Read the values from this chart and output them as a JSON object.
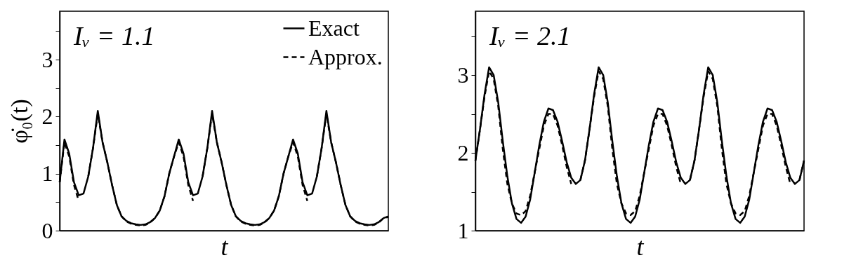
{
  "chart_data": [
    {
      "type": "line",
      "ylabel": "φ̇₀(t)",
      "xlabel": "t",
      "annotations": [
        "Iᵥ = 1.1"
      ],
      "categories": [
        null,
        null,
        null,
        null,
        null,
        null,
        null,
        null,
        null,
        null,
        null,
        null,
        null,
        null,
        null,
        null,
        null,
        null,
        null,
        null,
        null,
        null,
        null,
        null,
        null,
        null,
        null,
        null,
        null,
        null,
        null,
        null,
        null,
        null,
        null,
        null,
        null,
        null,
        null,
        null,
        null,
        null,
        null,
        null,
        null,
        null,
        null,
        null,
        null,
        null,
        null,
        null,
        null,
        null,
        null,
        null,
        null,
        null,
        null,
        null,
        null,
        null,
        null,
        null,
        null,
        null,
        null,
        null,
        null,
        null
      ],
      "series": [
        {
          "name": "Exact",
          "color": "#000000",
          "line_style": "solid",
          "values": [
            0.85,
            1.6,
            1.35,
            0.85,
            0.62,
            0.65,
            0.95,
            1.45,
            2.1,
            1.55,
            1.2,
            0.8,
            0.45,
            0.25,
            0.17,
            0.13,
            0.11,
            0.1,
            0.11,
            0.15,
            0.22,
            0.35,
            0.6,
            1.0,
            1.3,
            1.6,
            1.35,
            0.85,
            0.62,
            0.65,
            0.95,
            1.45,
            2.1,
            1.55,
            1.2,
            0.8,
            0.45,
            0.25,
            0.17,
            0.13,
            0.11,
            0.1,
            0.11,
            0.15,
            0.22,
            0.35,
            0.6,
            1.0,
            1.3,
            1.6,
            1.35,
            0.85,
            0.62,
            0.65,
            0.95,
            1.45,
            2.1,
            1.55,
            1.2,
            0.8,
            0.45,
            0.25,
            0.17,
            0.13,
            0.11,
            0.1,
            0.11,
            0.15,
            0.22,
            0.25
          ]
        },
        {
          "name": "Approx.",
          "color": "#000000",
          "line_style": "dashed",
          "values": [
            0.85,
            1.55,
            1.3,
            0.8,
            0.52,
            null,
            0.95,
            1.45,
            2.05,
            1.55,
            1.2,
            0.8,
            0.45,
            0.25,
            0.16,
            0.12,
            0.1,
            0.09,
            0.1,
            0.14,
            0.22,
            0.35,
            0.6,
            1.0,
            1.3,
            1.55,
            1.3,
            0.8,
            0.52,
            null,
            0.95,
            1.45,
            2.05,
            1.55,
            1.2,
            0.8,
            0.45,
            0.25,
            0.16,
            0.12,
            0.1,
            0.09,
            0.1,
            0.14,
            0.22,
            0.35,
            0.6,
            1.0,
            1.3,
            1.55,
            1.3,
            0.8,
            0.52,
            null,
            0.95,
            1.45,
            2.05,
            1.55,
            1.2,
            0.8,
            0.45,
            0.25,
            0.16,
            0.12,
            0.1,
            0.09,
            0.1,
            0.14,
            0.22,
            0.24
          ]
        }
      ],
      "ylim": [
        0,
        3.85
      ],
      "yticks": [
        0,
        {
          "value": 0.5,
          "label": null
        },
        1,
        {
          "value": 1.5,
          "label": null
        },
        2,
        {
          "value": 2.5,
          "label": null
        },
        3,
        {
          "value": 3.5,
          "label": null
        }
      ],
      "tick_labels": "y",
      "legend": "top right",
      "grid": false
    },
    {
      "type": "line",
      "xlabel": "t",
      "annotations": [
        "Iᵥ = 2.1"
      ],
      "categories": [
        null,
        null,
        null,
        null,
        null,
        null,
        null,
        null,
        null,
        null,
        null,
        null,
        null,
        null,
        null,
        null,
        null,
        null,
        null,
        null,
        null,
        null,
        null,
        null,
        null,
        null,
        null,
        null,
        null,
        null,
        null,
        null,
        null,
        null,
        null,
        null,
        null,
        null,
        null,
        null,
        null,
        null,
        null,
        null,
        null,
        null,
        null,
        null,
        null,
        null,
        null,
        null,
        null,
        null,
        null,
        null,
        null,
        null,
        null,
        null,
        null,
        null,
        null,
        null,
        null,
        null,
        null,
        null,
        null,
        null,
        null,
        null,
        null
      ],
      "series": [
        {
          "color": "#000000",
          "line_style": "solid",
          "values": [
            1.9,
            2.3,
            2.75,
            3.1,
            3.0,
            2.65,
            2.15,
            1.7,
            1.35,
            1.15,
            1.1,
            1.18,
            1.4,
            1.75,
            2.1,
            2.4,
            2.57,
            2.55,
            2.4,
            2.15,
            1.88,
            1.68,
            1.6,
            1.65,
            1.9,
            2.3,
            2.75,
            3.1,
            3.0,
            2.65,
            2.15,
            1.7,
            1.35,
            1.15,
            1.1,
            1.18,
            1.4,
            1.75,
            2.1,
            2.4,
            2.57,
            2.55,
            2.4,
            2.15,
            1.88,
            1.68,
            1.6,
            1.65,
            1.9,
            2.3,
            2.75,
            3.1,
            3.0,
            2.65,
            2.15,
            1.7,
            1.35,
            1.15,
            1.1,
            1.18,
            1.4,
            1.75,
            2.1,
            2.4,
            2.57,
            2.55,
            2.4,
            2.15,
            1.88,
            1.68,
            1.6,
            1.65,
            1.9
          ]
        },
        {
          "color": "#000000",
          "line_style": "dashed",
          "values": [
            1.9,
            2.3,
            2.72,
            3.05,
            2.95,
            2.6,
            2.05,
            1.6,
            1.35,
            1.22,
            1.2,
            1.25,
            1.45,
            1.75,
            2.05,
            2.35,
            2.5,
            2.5,
            2.35,
            2.1,
            1.82,
            1.6,
            null,
            1.65,
            1.9,
            2.3,
            2.72,
            3.05,
            2.95,
            2.6,
            2.05,
            1.6,
            1.35,
            1.22,
            1.2,
            1.25,
            1.45,
            1.75,
            2.05,
            2.35,
            2.5,
            2.5,
            2.35,
            2.1,
            1.82,
            1.6,
            null,
            1.65,
            1.9,
            2.3,
            2.72,
            3.05,
            2.95,
            2.6,
            2.05,
            1.6,
            1.35,
            1.22,
            1.2,
            1.25,
            1.45,
            1.75,
            2.05,
            2.35,
            2.5,
            2.5,
            2.35,
            2.1,
            1.82,
            1.6,
            null,
            1.65,
            1.9
          ]
        }
      ],
      "ylim": [
        1,
        3.82
      ],
      "yticks": [
        1,
        {
          "value": 1.5,
          "label": null
        },
        2,
        {
          "value": 2.5,
          "label": null
        },
        3,
        {
          "value": 3.5,
          "label": null
        }
      ],
      "tick_labels": "y",
      "grid": false
    }
  ]
}
